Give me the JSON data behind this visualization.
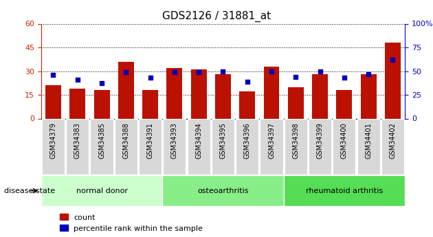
{
  "title": "GDS2126 / 31881_at",
  "samples": [
    "GSM34379",
    "GSM34383",
    "GSM34385",
    "GSM34388",
    "GSM34391",
    "GSM34393",
    "GSM34394",
    "GSM34395",
    "GSM34396",
    "GSM34397",
    "GSM34398",
    "GSM34399",
    "GSM34400",
    "GSM34401",
    "GSM34402"
  ],
  "counts": [
    21,
    19,
    18,
    36,
    18,
    32,
    31,
    28,
    17,
    33,
    20,
    28,
    18,
    28,
    48
  ],
  "percentiles": [
    46,
    41,
    37,
    49,
    43,
    49,
    49,
    50,
    39,
    50,
    44,
    50,
    43,
    47,
    62
  ],
  "groups": [
    {
      "label": "normal donor",
      "start": 0,
      "end": 5,
      "color": "#ccffcc"
    },
    {
      "label": "osteoarthritis",
      "start": 5,
      "end": 10,
      "color": "#88ee88"
    },
    {
      "label": "rheumatoid arthritis",
      "start": 10,
      "end": 15,
      "color": "#55dd55"
    }
  ],
  "ylim_left": [
    0,
    60
  ],
  "ylim_right": [
    0,
    100
  ],
  "yticks_left": [
    0,
    15,
    30,
    45,
    60
  ],
  "yticks_right": [
    0,
    25,
    50,
    75,
    100
  ],
  "bar_color": "#bb1100",
  "dot_color": "#0000bb",
  "left_axis_color": "#cc2200",
  "right_axis_color": "#0000cc",
  "legend_count_label": "count",
  "legend_pct_label": "percentile rank within the sample",
  "disease_state_label": "disease state"
}
